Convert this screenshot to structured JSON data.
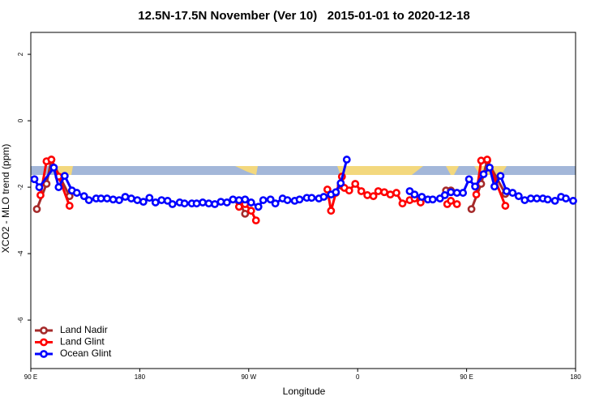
{
  "chart_data": {
    "type": "line",
    "title": "12.5N-17.5N November (Ver 10)   2015-01-01 to 2020-12-18",
    "xlabel": "Longitude",
    "ylabel": "XCO2 - MLO trend (ppm)",
    "xlim": [
      90,
      540
    ],
    "xticks": [
      {
        "value": 90,
        "label": "90 E"
      },
      {
        "value": 180,
        "label": "180"
      },
      {
        "value": 270,
        "label": "90 W"
      },
      {
        "value": 360,
        "label": "0"
      },
      {
        "value": 450,
        "label": "90 E"
      },
      {
        "value": 540,
        "label": "180"
      }
    ],
    "ylim": [
      -7.46,
      2.66
    ],
    "yticks": [
      2,
      0,
      -2,
      -4,
      -6
    ],
    "legend": "bottom-left",
    "series": [
      {
        "name": "Land Nadir",
        "color": "#a52a2a",
        "x": [
          95,
          103,
          107,
          122,
          200,
          262,
          267,
          340,
          346,
          400,
          433,
          437,
          445,
          454,
          462,
          467,
          482
        ],
        "values": [
          -2.66,
          -1.9,
          -1.17,
          -2.27,
          null,
          -2.44,
          -2.8,
          null,
          -1.95,
          null,
          -2.1,
          -2.1,
          null,
          -2.66,
          -1.9,
          -1.2,
          -2.2
        ]
      },
      {
        "name": "Land Glint",
        "color": "#ff0000",
        "x": [
          98,
          103,
          107,
          113,
          122,
          200,
          262,
          267,
          272,
          276,
          340,
          335,
          338,
          342,
          347,
          349,
          353,
          358,
          363,
          368,
          373,
          377,
          382,
          387,
          392,
          397,
          403,
          407,
          412,
          425,
          434,
          437,
          442,
          445,
          458,
          462,
          467,
          482
        ],
        "values": [
          -2.24,
          -1.22,
          -1.17,
          -1.68,
          -2.56,
          null,
          -2.59,
          -2.51,
          -2.71,
          -3.0,
          null,
          -2.07,
          -2.71,
          -2.17,
          -1.68,
          -2.02,
          -2.1,
          -1.9,
          -2.12,
          -2.24,
          -2.27,
          -2.12,
          -2.15,
          -2.22,
          -2.17,
          -2.49,
          -2.39,
          -2.34,
          -2.46,
          null,
          -2.51,
          -2.41,
          -2.51,
          null,
          -2.22,
          -1.2,
          -1.17,
          -2.56
        ]
      },
      {
        "name": "Ocean Glint",
        "color": "#0000ff",
        "x": [
          93,
          97,
          109,
          113,
          118,
          124,
          128,
          134,
          138,
          144,
          148,
          153,
          158,
          163,
          168,
          173,
          178,
          183,
          188,
          193,
          198,
          203,
          207,
          213,
          217,
          223,
          227,
          232,
          237,
          242,
          247,
          252,
          257,
          262,
          267,
          272,
          278,
          282,
          288,
          292,
          298,
          302,
          308,
          312,
          318,
          322,
          328,
          332,
          338,
          342,
          346,
          351,
          376,
          403,
          407,
          413,
          418,
          422,
          428,
          432,
          437,
          442,
          447,
          452,
          457,
          464,
          469,
          473,
          478,
          483,
          488,
          493,
          498,
          503,
          508,
          513,
          517,
          523,
          528,
          532,
          538
        ],
        "values": [
          -1.76,
          -2.0,
          -1.41,
          -2.0,
          -1.66,
          -2.1,
          -2.17,
          -2.27,
          -2.39,
          -2.34,
          -2.34,
          -2.34,
          -2.37,
          -2.39,
          -2.29,
          -2.34,
          -2.39,
          -2.44,
          -2.32,
          -2.46,
          -2.39,
          -2.41,
          -2.51,
          -2.46,
          -2.49,
          -2.49,
          -2.49,
          -2.46,
          -2.49,
          -2.51,
          -2.44,
          -2.46,
          -2.37,
          -2.39,
          -2.37,
          -2.46,
          -2.59,
          -2.39,
          -2.37,
          -2.49,
          -2.34,
          -2.39,
          -2.41,
          -2.37,
          -2.32,
          -2.32,
          -2.34,
          -2.29,
          -2.22,
          -2.15,
          -1.88,
          -1.17,
          null,
          -2.12,
          -2.22,
          -2.29,
          -2.37,
          -2.37,
          -2.34,
          -2.24,
          -2.15,
          -2.17,
          -2.17,
          -1.76,
          -1.98,
          -1.61,
          -1.41,
          -1.98,
          -1.66,
          -2.12,
          -2.17,
          -2.27,
          -2.39,
          -2.34,
          -2.34,
          -2.34,
          -2.37,
          -2.41,
          -2.29,
          -2.34,
          -2.41
        ]
      }
    ]
  }
}
